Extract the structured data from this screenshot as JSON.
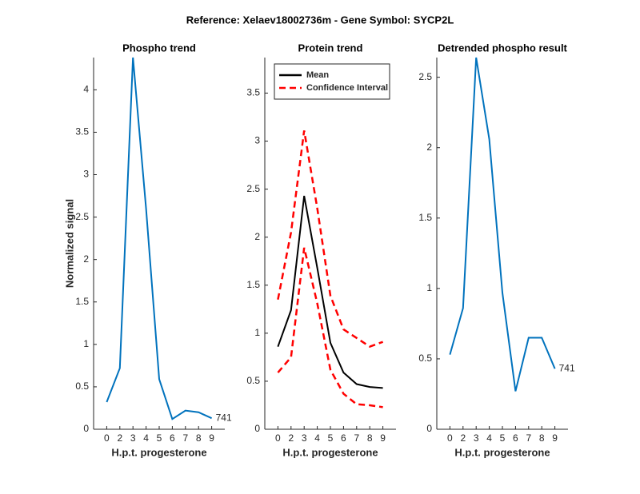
{
  "title": "Reference:  Xelaev18002736m - Gene Symbol:  SYCP2L",
  "chart_data": [
    {
      "type": "line",
      "title": "Phospho trend",
      "xlabel": "H.p.t. progesterone",
      "ylabel": "Normalized signal",
      "categories": [
        "0",
        "2",
        "3",
        "4",
        "5",
        "6",
        "7",
        "8",
        "9"
      ],
      "series": [
        {
          "color": "#0072bd",
          "values": [
            0.32,
            0.72,
            4.38,
            2.6,
            0.59,
            0.12,
            0.22,
            0.2,
            0.13
          ]
        }
      ],
      "annotation": "741",
      "ylim": [
        0,
        4.38
      ],
      "yticks": [
        0,
        0.5,
        1,
        1.5,
        2,
        2.5,
        3,
        3.5,
        4
      ]
    },
    {
      "type": "line",
      "title": "Protein trend",
      "xlabel": "H.p.t. progesterone",
      "categories": [
        "0",
        "2",
        "3",
        "4",
        "5",
        "6",
        "7",
        "8",
        "9"
      ],
      "series": [
        {
          "name": "Mean",
          "color": "#000000",
          "values": [
            0.86,
            1.24,
            2.43,
            1.68,
            0.9,
            0.59,
            0.47,
            0.44,
            0.43
          ]
        },
        {
          "name": "Confidence Interval",
          "color": "#ff0000",
          "dash": true,
          "values": [
            1.35,
            2.05,
            3.11,
            2.3,
            1.39,
            1.04,
            0.95,
            0.86,
            0.91
          ]
        },
        {
          "color": "#ff0000",
          "dash": true,
          "values": [
            0.59,
            0.75,
            1.89,
            1.31,
            0.62,
            0.37,
            0.26,
            0.25,
            0.23
          ]
        }
      ],
      "legend": "upper-left",
      "ylim": [
        0,
        3.87
      ],
      "yticks": [
        0,
        0.5,
        1,
        1.5,
        2,
        2.5,
        3,
        3.5
      ]
    },
    {
      "type": "line",
      "title": "Detrended phospho result",
      "xlabel": "H.p.t. progesterone",
      "categories": [
        "0",
        "2",
        "3",
        "4",
        "5",
        "6",
        "7",
        "8",
        "9"
      ],
      "series": [
        {
          "color": "#0072bd",
          "values": [
            0.53,
            0.86,
            2.64,
            2.06,
            0.97,
            0.27,
            0.65,
            0.65,
            0.43
          ]
        }
      ],
      "annotation": "741",
      "ylim": [
        0,
        2.64
      ],
      "yticks": [
        0,
        0.5,
        1,
        1.5,
        2,
        2.5
      ]
    }
  ]
}
